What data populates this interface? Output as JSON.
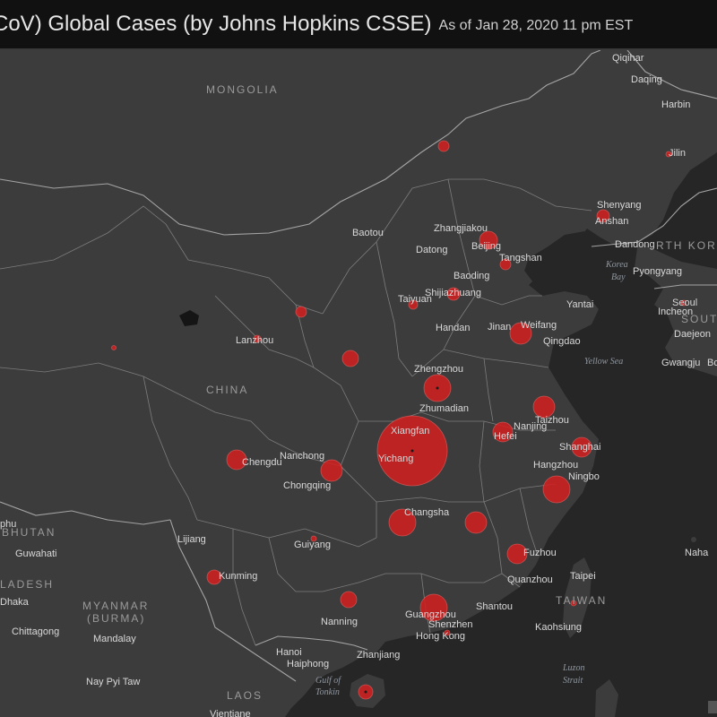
{
  "header": {
    "title": "CoV) Global Cases (by Johns Hopkins CSSE)",
    "subtitle": "As of Jan 28, 2020 11 pm EST"
  },
  "map": {
    "colors": {
      "land": "#3c3c3c",
      "sea": "#262626",
      "bubble": "#d41e1e",
      "header": "#111111"
    },
    "countries": [
      {
        "id": "mongolia",
        "text": "MONGOLIA"
      },
      {
        "id": "china",
        "text": "CHINA"
      },
      {
        "id": "north-korea",
        "text": "RTH KOREA"
      },
      {
        "id": "south-korea",
        "text": "SOUTH"
      },
      {
        "id": "bhutan",
        "text": "BHUTAN"
      },
      {
        "id": "bangladesh",
        "text": "LADESH"
      },
      {
        "id": "myanmar",
        "text": "MYANMAR"
      },
      {
        "id": "burma",
        "text": "(BURMA)"
      },
      {
        "id": "taiwan",
        "text": "TAIWAN"
      },
      {
        "id": "laos",
        "text": "LAOS"
      }
    ],
    "water": [
      {
        "id": "korea-bay-1",
        "text": "Korea"
      },
      {
        "id": "korea-bay-2",
        "text": "Bay"
      },
      {
        "id": "yellow-sea",
        "text": "Yellow Sea"
      },
      {
        "id": "gulf-1",
        "text": "Gulf of"
      },
      {
        "id": "gulf-2",
        "text": "Tonkin"
      },
      {
        "id": "luzon-1",
        "text": "Luzon"
      },
      {
        "id": "luzon-2",
        "text": "Strait"
      }
    ],
    "cities": [
      {
        "id": "qiqihar",
        "text": "Qiqihar"
      },
      {
        "id": "daqing",
        "text": "Daqing"
      },
      {
        "id": "harbin",
        "text": "Harbin"
      },
      {
        "id": "jilin",
        "text": "Jilin"
      },
      {
        "id": "shenyang",
        "text": "Shenyang"
      },
      {
        "id": "anshan",
        "text": "Anshan"
      },
      {
        "id": "dandong",
        "text": "Dandong"
      },
      {
        "id": "pyongyang",
        "text": "Pyongyang"
      },
      {
        "id": "seoul",
        "text": "Seoul"
      },
      {
        "id": "incheon",
        "text": "Incheon"
      },
      {
        "id": "daejeon",
        "text": "Daejeon"
      },
      {
        "id": "gwangju",
        "text": "Gwangju"
      },
      {
        "id": "baotou",
        "text": "Baotou"
      },
      {
        "id": "zhangjiakou",
        "text": "Zhangjiakou"
      },
      {
        "id": "beijing",
        "text": "Beijing"
      },
      {
        "id": "datong",
        "text": "Datong"
      },
      {
        "id": "tangshan",
        "text": "Tangshan"
      },
      {
        "id": "baoding",
        "text": "Baoding"
      },
      {
        "id": "taiyuan",
        "text": "Taiyuan"
      },
      {
        "id": "shijiazhuang",
        "text": "Shijiazhuang"
      },
      {
        "id": "yantai",
        "text": "Yantai"
      },
      {
        "id": "weifang",
        "text": "Weifang"
      },
      {
        "id": "jinan",
        "text": "Jinan"
      },
      {
        "id": "handan",
        "text": "Handan"
      },
      {
        "id": "qingdao",
        "text": "Qingdao"
      },
      {
        "id": "lanzhou",
        "text": "Lanzhou"
      },
      {
        "id": "zhengzhou",
        "text": "Zhengzhou"
      },
      {
        "id": "zhumadian",
        "text": "Zhumadian"
      },
      {
        "id": "taizhou",
        "text": "Taizhou"
      },
      {
        "id": "nanjing",
        "text": "Nanjing"
      },
      {
        "id": "hefei",
        "text": "Hefei"
      },
      {
        "id": "xiangfan",
        "text": "Xiangfan"
      },
      {
        "id": "shanghai",
        "text": "Shanghai"
      },
      {
        "id": "chengdu",
        "text": "Chengdu"
      },
      {
        "id": "nanchong",
        "text": "Nanchong"
      },
      {
        "id": "yichang",
        "text": "Yichang"
      },
      {
        "id": "hangzhou",
        "text": "Hangzhou"
      },
      {
        "id": "ningbo",
        "text": "Ningbo"
      },
      {
        "id": "chongqing",
        "text": "Chongqing"
      },
      {
        "id": "changsha",
        "text": "Changsha"
      },
      {
        "id": "phu",
        "text": "phu"
      },
      {
        "id": "guwahati",
        "text": "Guwahati"
      },
      {
        "id": "lijiang",
        "text": "Lijiang"
      },
      {
        "id": "guiyang",
        "text": "Guiyang"
      },
      {
        "id": "fuzhou",
        "text": "Fuzhou"
      },
      {
        "id": "naha",
        "text": "Naha"
      },
      {
        "id": "kunming",
        "text": "Kunming"
      },
      {
        "id": "taipei",
        "text": "Taipei"
      },
      {
        "id": "quanzhou",
        "text": "Quanzhou"
      },
      {
        "id": "dhaka",
        "text": "Dhaka"
      },
      {
        "id": "nanning",
        "text": "Nanning"
      },
      {
        "id": "shantou",
        "text": "Shantou"
      },
      {
        "id": "guangzhou",
        "text": "Guangzhou"
      },
      {
        "id": "shenzhen",
        "text": "Shenzhen"
      },
      {
        "id": "kaohsiung",
        "text": "Kaohsiung"
      },
      {
        "id": "chittagong",
        "text": "Chittagong"
      },
      {
        "id": "mandalay",
        "text": "Mandalay"
      },
      {
        "id": "hong-kong",
        "text": "Hong Kong"
      },
      {
        "id": "hanoi",
        "text": "Hanoi"
      },
      {
        "id": "zhanjiang",
        "text": "Zhanjiang"
      },
      {
        "id": "haiphong",
        "text": "Haiphong"
      },
      {
        "id": "nay-pyi-taw",
        "text": "Nay Pyi Taw"
      },
      {
        "id": "vientiane",
        "text": "Vientiane"
      },
      {
        "id": "bo-partial",
        "text": "Bo"
      }
    ]
  }
}
